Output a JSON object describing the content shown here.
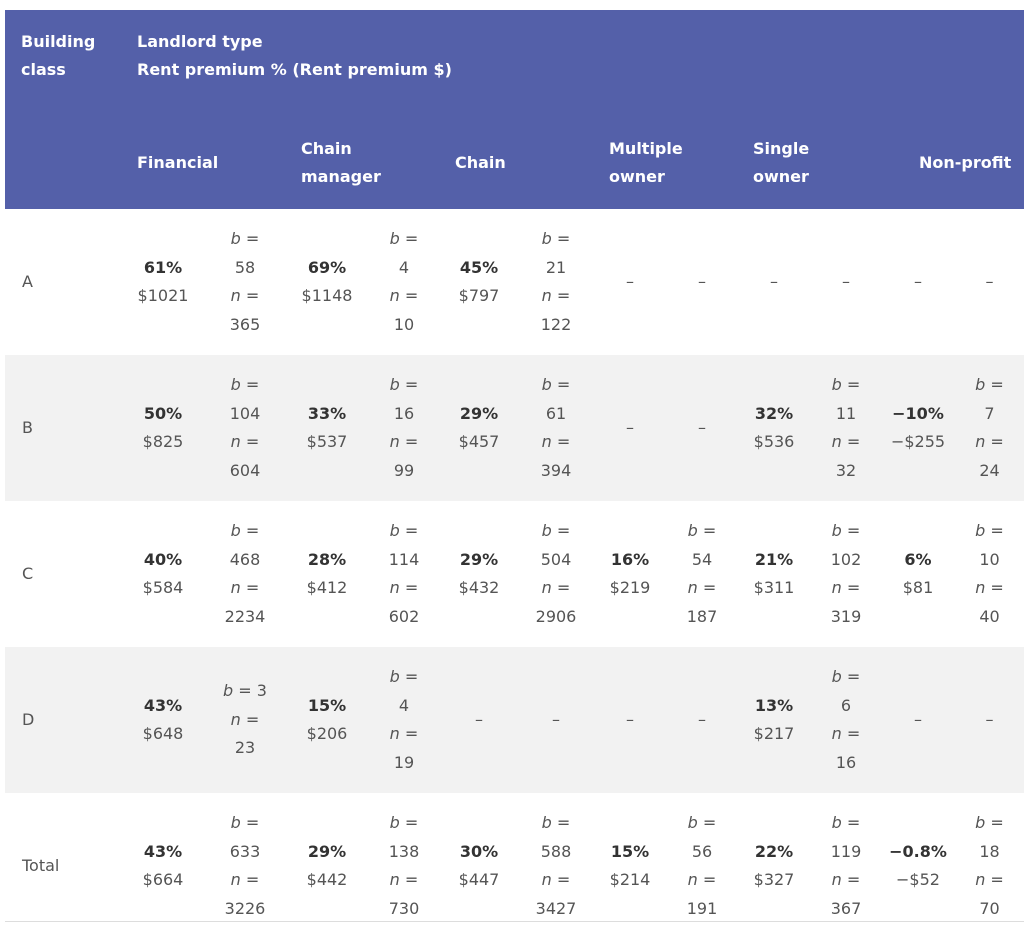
{
  "header": {
    "building_class": "Building class",
    "landlord_type": "Landlord type",
    "rent_premium": "Rent premium % (Rent premium $)",
    "columns": [
      "Financial",
      "Chain manager",
      "Chain",
      "Multiple owner",
      "Single owner",
      "Non-profit"
    ]
  },
  "rows": [
    {
      "label": "A",
      "cells": [
        {
          "pct": "61%",
          "dol": "$1021",
          "b": "58",
          "n": "365"
        },
        {
          "pct": "69%",
          "dol": "$1148",
          "b": "4",
          "n": "10"
        },
        {
          "pct": "45%",
          "dol": "$797",
          "b": "21",
          "n": "122"
        },
        null,
        null,
        null
      ]
    },
    {
      "label": "B",
      "cells": [
        {
          "pct": "50%",
          "dol": "$825",
          "b": "104",
          "n": "604"
        },
        {
          "pct": "33%",
          "dol": "$537",
          "b": "16",
          "n": "99"
        },
        {
          "pct": "29%",
          "dol": "$457",
          "b": "61",
          "n": "394"
        },
        null,
        {
          "pct": "32%",
          "dol": "$536",
          "b": "11",
          "n": "32"
        },
        {
          "pct": "−10%",
          "dol": "−$255",
          "b": "7",
          "n": "24"
        }
      ]
    },
    {
      "label": "C",
      "cells": [
        {
          "pct": "40%",
          "dol": "$584",
          "b": "468",
          "n": "2234"
        },
        {
          "pct": "28%",
          "dol": "$412",
          "b": "114",
          "n": "602"
        },
        {
          "pct": "29%",
          "dol": "$432",
          "b": "504",
          "n": "2906"
        },
        {
          "pct": "16%",
          "dol": "$219",
          "b": "54",
          "n": "187"
        },
        {
          "pct": "21%",
          "dol": "$311",
          "b": "102",
          "n": "319"
        },
        {
          "pct": "6%",
          "dol": "$81",
          "b": "10",
          "n": "40"
        }
      ]
    },
    {
      "label": "D",
      "cells": [
        {
          "pct": "43%",
          "dol": "$648",
          "b": "3",
          "n": "23",
          "inline_b": true
        },
        {
          "pct": "15%",
          "dol": "$206",
          "b": "4",
          "n": "19"
        },
        null,
        null,
        {
          "pct": "13%",
          "dol": "$217",
          "b": "6",
          "n": "16"
        },
        null
      ]
    },
    {
      "label": "Total",
      "cells": [
        {
          "pct": "43%",
          "dol": "$664",
          "b": "633",
          "n": "3226"
        },
        {
          "pct": "29%",
          "dol": "$442",
          "b": "138",
          "n": "730"
        },
        {
          "pct": "30%",
          "dol": "$447",
          "b": "588",
          "n": "3427"
        },
        {
          "pct": "15%",
          "dol": "$214",
          "b": "56",
          "n": "191"
        },
        {
          "pct": "22%",
          "dol": "$327",
          "b": "119",
          "n": "367"
        },
        {
          "pct": "−0.8%",
          "dol": "−$52",
          "b": "18",
          "n": "70"
        }
      ]
    }
  ],
  "dash": "–",
  "b_label": "b",
  "n_label": "n",
  "eq": "="
}
